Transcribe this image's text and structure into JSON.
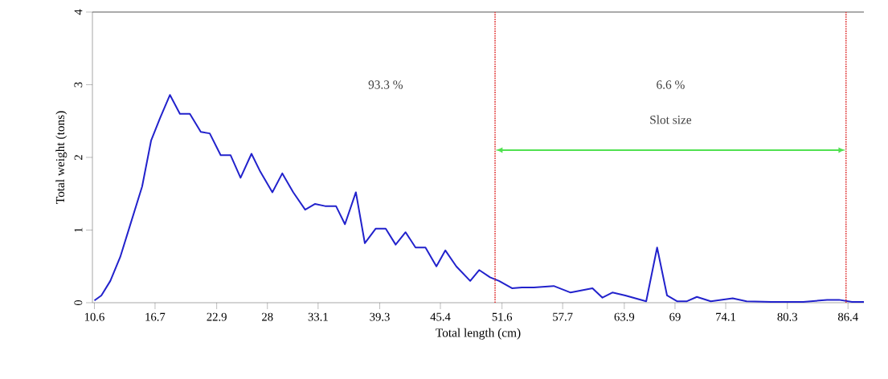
{
  "chart_data": {
    "type": "line",
    "xlabel": "Total length (cm)",
    "ylabel": "Total weight (tons)",
    "xlim": [
      10.4,
      88.0
    ],
    "ylim": [
      0,
      4
    ],
    "xticks": [
      10.6,
      16.7,
      22.9,
      28,
      33.1,
      39.3,
      45.4,
      51.6,
      57.7,
      63.9,
      69,
      74.1,
      80.3,
      86.4
    ],
    "yticks": [
      0,
      1,
      2,
      3,
      4
    ],
    "grid": false,
    "marker": "none",
    "line_style": "solid",
    "series": [
      {
        "color": "#2222cc",
        "x": [
          10.6,
          11.3,
          12.2,
          13.2,
          14.2,
          15.4,
          16.3,
          17.2,
          18.2,
          19.2,
          20.2,
          21.3,
          22.2,
          23.3,
          24.3,
          25.3,
          26.4,
          27.3,
          28.5,
          29.5,
          30.6,
          31.8,
          32.8,
          33.8,
          34.9,
          35.8,
          36.9,
          37.8,
          38.9,
          39.9,
          40.9,
          41.9,
          42.9,
          43.9,
          45.0,
          45.9,
          47.0,
          48.4,
          49.3,
          50.4,
          51.3,
          52.6,
          53.6,
          54.8,
          56.8,
          58.5,
          60.7,
          61.7,
          62.7,
          64.0,
          66.1,
          67.2,
          68.2,
          69.2,
          70.2,
          71.2,
          72.6,
          74.8,
          76.2,
          78.7,
          81.9,
          84.3,
          85.5,
          86.8,
          88.0
        ],
        "values": [
          0.03,
          0.1,
          0.3,
          0.63,
          1.07,
          1.6,
          2.23,
          2.54,
          2.86,
          2.6,
          2.6,
          2.35,
          2.33,
          2.03,
          2.03,
          1.72,
          2.05,
          1.8,
          1.52,
          1.78,
          1.52,
          1.28,
          1.36,
          1.33,
          1.33,
          1.08,
          1.52,
          0.82,
          1.02,
          1.02,
          0.8,
          0.97,
          0.76,
          0.76,
          0.5,
          0.72,
          0.5,
          0.3,
          0.45,
          0.35,
          0.3,
          0.2,
          0.21,
          0.21,
          0.23,
          0.14,
          0.2,
          0.07,
          0.14,
          0.1,
          0.02,
          0.76,
          0.1,
          0.02,
          0.02,
          0.08,
          0.02,
          0.06,
          0.02,
          0.01,
          0.01,
          0.04,
          0.04,
          0.01,
          0.01
        ]
      }
    ],
    "ref_lines": [
      {
        "axis": "x",
        "value": 50.9,
        "color": "#e03030",
        "line_style": "dotted"
      },
      {
        "axis": "x",
        "value": 86.2,
        "color": "#e03030",
        "line_style": "dotted"
      }
    ],
    "annotations": [
      "93.3 %",
      "6.6 %",
      "Slot size"
    ]
  }
}
